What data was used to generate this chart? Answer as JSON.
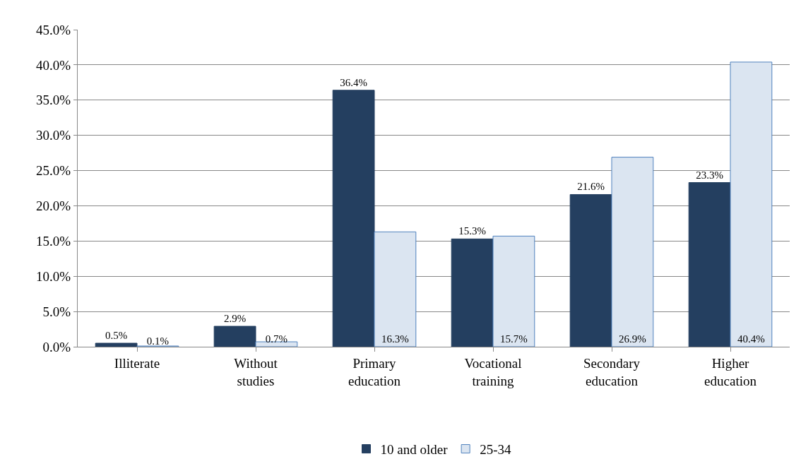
{
  "chart_data": {
    "type": "bar",
    "categories": [
      "Illiterate",
      "Without\nstudies",
      "Primary\neducation",
      "Vocational\ntraining",
      "Secondary\neducation",
      "Higher\neducation"
    ],
    "series": [
      {
        "name": "10 and older",
        "color": "#243f60",
        "values": [
          0.5,
          2.9,
          36.4,
          15.3,
          21.6,
          23.3
        ],
        "value_labels": [
          "0.5%",
          "2.9%",
          "36.4%",
          "15.3%",
          "21.6%",
          "23.3%"
        ]
      },
      {
        "name": "25-34",
        "color": "#dbe5f1",
        "values": [
          0.1,
          0.7,
          16.3,
          15.7,
          26.9,
          40.4
        ],
        "value_labels": [
          "0.1%",
          "0.7%",
          "16.3%",
          "15.7%",
          "26.9%",
          "40.4%"
        ]
      }
    ],
    "ylim": [
      0,
      45
    ],
    "yticks": [
      {
        "value": 0,
        "label": "0.0%"
      },
      {
        "value": 5,
        "label": "5.0%"
      },
      {
        "value": 10,
        "label": "10.0%"
      },
      {
        "value": 15,
        "label": "15.0%"
      },
      {
        "value": 20,
        "label": "20.0%"
      },
      {
        "value": 25,
        "label": "25.0%"
      },
      {
        "value": 30,
        "label": "30.0%"
      },
      {
        "value": 35,
        "label": "35.0%"
      },
      {
        "value": 40,
        "label": "40.0%"
      },
      {
        "value": 45,
        "label": "45.0%"
      }
    ],
    "grid": "y",
    "legend": "bottom"
  }
}
